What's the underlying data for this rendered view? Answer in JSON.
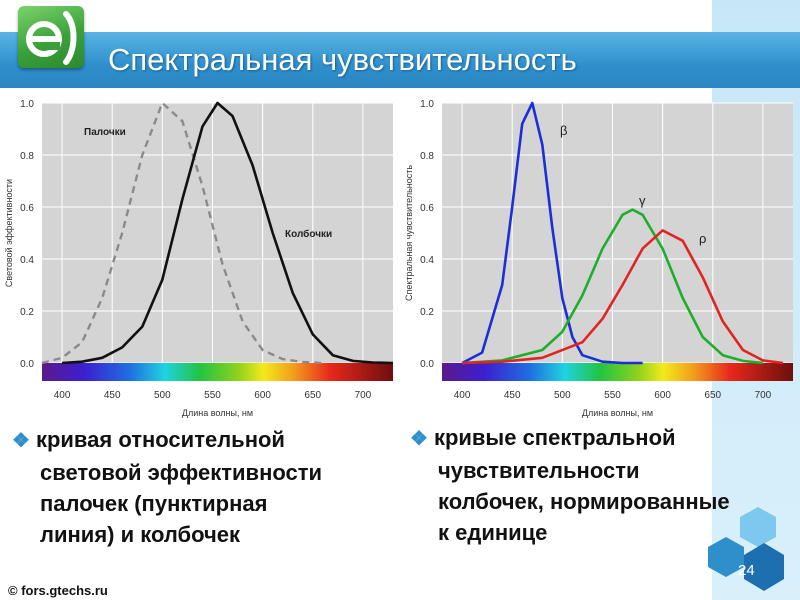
{
  "slide": {
    "title": "Спектральная чувствительность",
    "logo_text": "e",
    "footer": "© fors.gtechs.ru",
    "page_number": "24",
    "accent_color": "#2f8fcb"
  },
  "bullets": [
    {
      "icon": "diamond-bullet-icon",
      "lines": [
        "кривая относительной",
        "световой эффективности",
        "палочек (пунктирная",
        "линия) и колбочек"
      ]
    },
    {
      "icon": "diamond-bullet-icon",
      "lines": [
        "кривые спектральной",
        "чувствительности",
        "колбочек, нормированные",
        "к единице"
      ]
    }
  ],
  "chart_data": [
    {
      "type": "line",
      "xlabel": "Длина волны, нм",
      "ylabel": "Световой эффективности",
      "xlim": [
        380,
        730
      ],
      "ylim": [
        0,
        1.0
      ],
      "x_ticks": [
        "400",
        "450",
        "500",
        "550",
        "600",
        "650",
        "700"
      ],
      "y_ticks": [
        "0.0",
        "0.2",
        "0.4",
        "0.6",
        "0.8",
        "1.0"
      ],
      "grid": true,
      "spectrum_bar": true,
      "series": [
        {
          "name": "Палочки",
          "style": "dashed",
          "color": "#8a8a8a",
          "x": [
            380,
            400,
            420,
            440,
            460,
            480,
            500,
            520,
            540,
            560,
            580,
            600,
            620,
            640,
            660
          ],
          "y": [
            0.0,
            0.02,
            0.08,
            0.25,
            0.5,
            0.8,
            1.0,
            0.93,
            0.68,
            0.38,
            0.16,
            0.05,
            0.015,
            0.004,
            0.0
          ]
        },
        {
          "name": "Колбочки",
          "style": "solid",
          "color": "#111111",
          "x": [
            400,
            420,
            440,
            460,
            480,
            500,
            520,
            540,
            555,
            570,
            590,
            610,
            630,
            650,
            670,
            690,
            710,
            730
          ],
          "y": [
            0.0,
            0.005,
            0.02,
            0.06,
            0.14,
            0.32,
            0.63,
            0.91,
            1.0,
            0.95,
            0.76,
            0.5,
            0.27,
            0.11,
            0.03,
            0.008,
            0.002,
            0.0
          ]
        }
      ]
    },
    {
      "type": "line",
      "xlabel": "Длина волны, нм",
      "ylabel": "Спектральная чувствительность",
      "xlim": [
        380,
        730
      ],
      "ylim": [
        0,
        1.0
      ],
      "x_ticks": [
        "400",
        "450",
        "500",
        "550",
        "600",
        "650",
        "700"
      ],
      "y_ticks": [
        "0.0",
        "0.2",
        "0.4",
        "0.6",
        "0.8",
        "1.0"
      ],
      "grid": true,
      "spectrum_bar": true,
      "series": [
        {
          "name": "β",
          "style": "solid",
          "color": "#1a2fd6",
          "x": [
            400,
            420,
            440,
            450,
            460,
            470,
            480,
            490,
            500,
            510,
            520,
            540,
            560,
            580
          ],
          "y": [
            0.0,
            0.04,
            0.3,
            0.6,
            0.92,
            1.0,
            0.84,
            0.52,
            0.25,
            0.1,
            0.03,
            0.005,
            0.0,
            0.0
          ]
        },
        {
          "name": "γ",
          "style": "solid",
          "color": "#1fae2b",
          "x": [
            400,
            440,
            480,
            500,
            520,
            540,
            560,
            570,
            580,
            600,
            620,
            640,
            660,
            680,
            700
          ],
          "y": [
            0.0,
            0.01,
            0.05,
            0.12,
            0.26,
            0.44,
            0.57,
            0.59,
            0.57,
            0.44,
            0.25,
            0.1,
            0.03,
            0.008,
            0.0
          ]
        },
        {
          "name": "ρ",
          "style": "solid",
          "color": "#e02424",
          "x": [
            400,
            440,
            480,
            520,
            540,
            560,
            580,
            600,
            620,
            640,
            660,
            680,
            700,
            720
          ],
          "y": [
            0.0,
            0.005,
            0.02,
            0.08,
            0.17,
            0.3,
            0.44,
            0.51,
            0.47,
            0.33,
            0.16,
            0.05,
            0.01,
            0.0
          ]
        }
      ]
    }
  ]
}
